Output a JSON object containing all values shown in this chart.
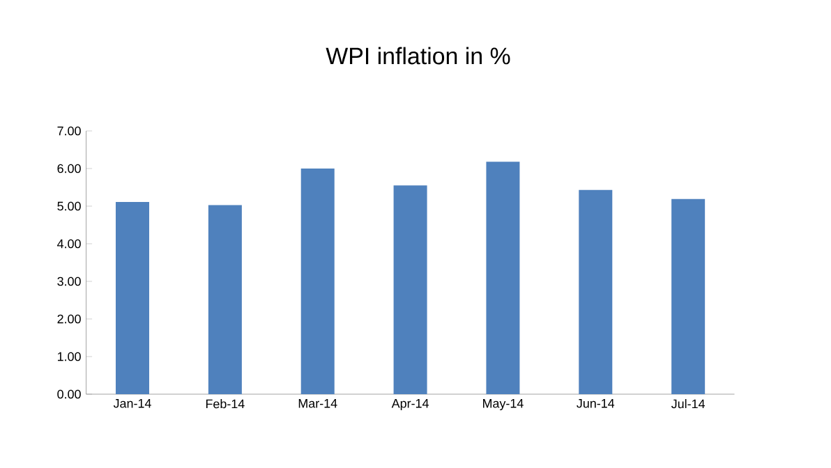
{
  "chart_data": {
    "type": "bar",
    "title": "WPI inflation in %",
    "categories": [
      "Jan-14",
      "Feb-14",
      "Mar-14",
      "Apr-14",
      "May-14",
      "Jun-14",
      "Jul-14"
    ],
    "values": [
      5.11,
      5.03,
      6.0,
      5.55,
      6.18,
      5.43,
      5.19
    ],
    "color": "#4f81bd",
    "ylim": [
      0,
      7
    ],
    "yticks": [
      {
        "value": 0,
        "label": "0.00"
      },
      {
        "value": 1,
        "label": "1.00"
      },
      {
        "value": 2,
        "label": "2.00"
      },
      {
        "value": 3,
        "label": "3.00"
      },
      {
        "value": 4,
        "label": "4.00"
      },
      {
        "value": 5,
        "label": "5.00"
      },
      {
        "value": 6,
        "label": "6.00"
      },
      {
        "value": 7,
        "label": "7.00"
      }
    ],
    "grid": false
  }
}
